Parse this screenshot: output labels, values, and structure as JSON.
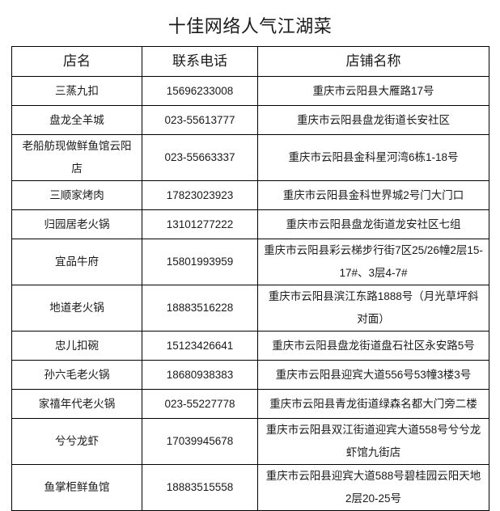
{
  "title": "十佳网络人气江湖菜",
  "table": {
    "columns": [
      "店名",
      "联系电话",
      "店铺名称"
    ],
    "rows": [
      {
        "name": "三蒸九扣",
        "phone": "15696233008",
        "address": "重庆市云阳县大雁路17号"
      },
      {
        "name": "盘龙全羊城",
        "phone": "023-55613777",
        "address": "重庆市云阳县盘龙街道长安社区"
      },
      {
        "name": "老船舫现做鲜鱼馆云阳店",
        "phone": "023-55663337",
        "address": "重庆市云阳县金科星河湾6栋1-18号"
      },
      {
        "name": "三顺家烤肉",
        "phone": "17823023923",
        "address": "重庆市云阳县金科世界城2号门大门口"
      },
      {
        "name": "归园居老火锅",
        "phone": "13101277222",
        "address": "重庆市云阳县盘龙街道龙安社区七组"
      },
      {
        "name": "宜品牛府",
        "phone": "15801993959",
        "address": "重庆市云阳县彩云梯步行街7区25/26幢2层15-17#、3层4-7#"
      },
      {
        "name": "地道老火锅",
        "phone": "18883516228",
        "address": "重庆市云阳县滨江东路1888号（月光草坪斜对面）"
      },
      {
        "name": "忠儿扣碗",
        "phone": "15123426641",
        "address": "重庆市云阳县盘龙街道盘石社区永安路5号"
      },
      {
        "name": "孙六毛老火锅",
        "phone": "18680938383",
        "address": "重庆市云阳县迎宾大道556号53幢3楼3号"
      },
      {
        "name": "家禧年代老火锅",
        "phone": "023-55227778",
        "address": "重庆市云阳县青龙街道绿森名都大门旁二楼"
      },
      {
        "name": "兮兮龙虾",
        "phone": "17039945678",
        "address": "重庆市云阳县双江街道迎宾大道558号兮兮龙虾馆九街店"
      },
      {
        "name": "鱼掌柜鲜鱼馆",
        "phone": "18883515558",
        "address": "重庆市云阳县迎宾大道588号碧桂园云阳天地2层20-25号"
      }
    ]
  },
  "colors": {
    "background": "#ffffff",
    "text": "#1a1a1a",
    "border": "#000000"
  }
}
